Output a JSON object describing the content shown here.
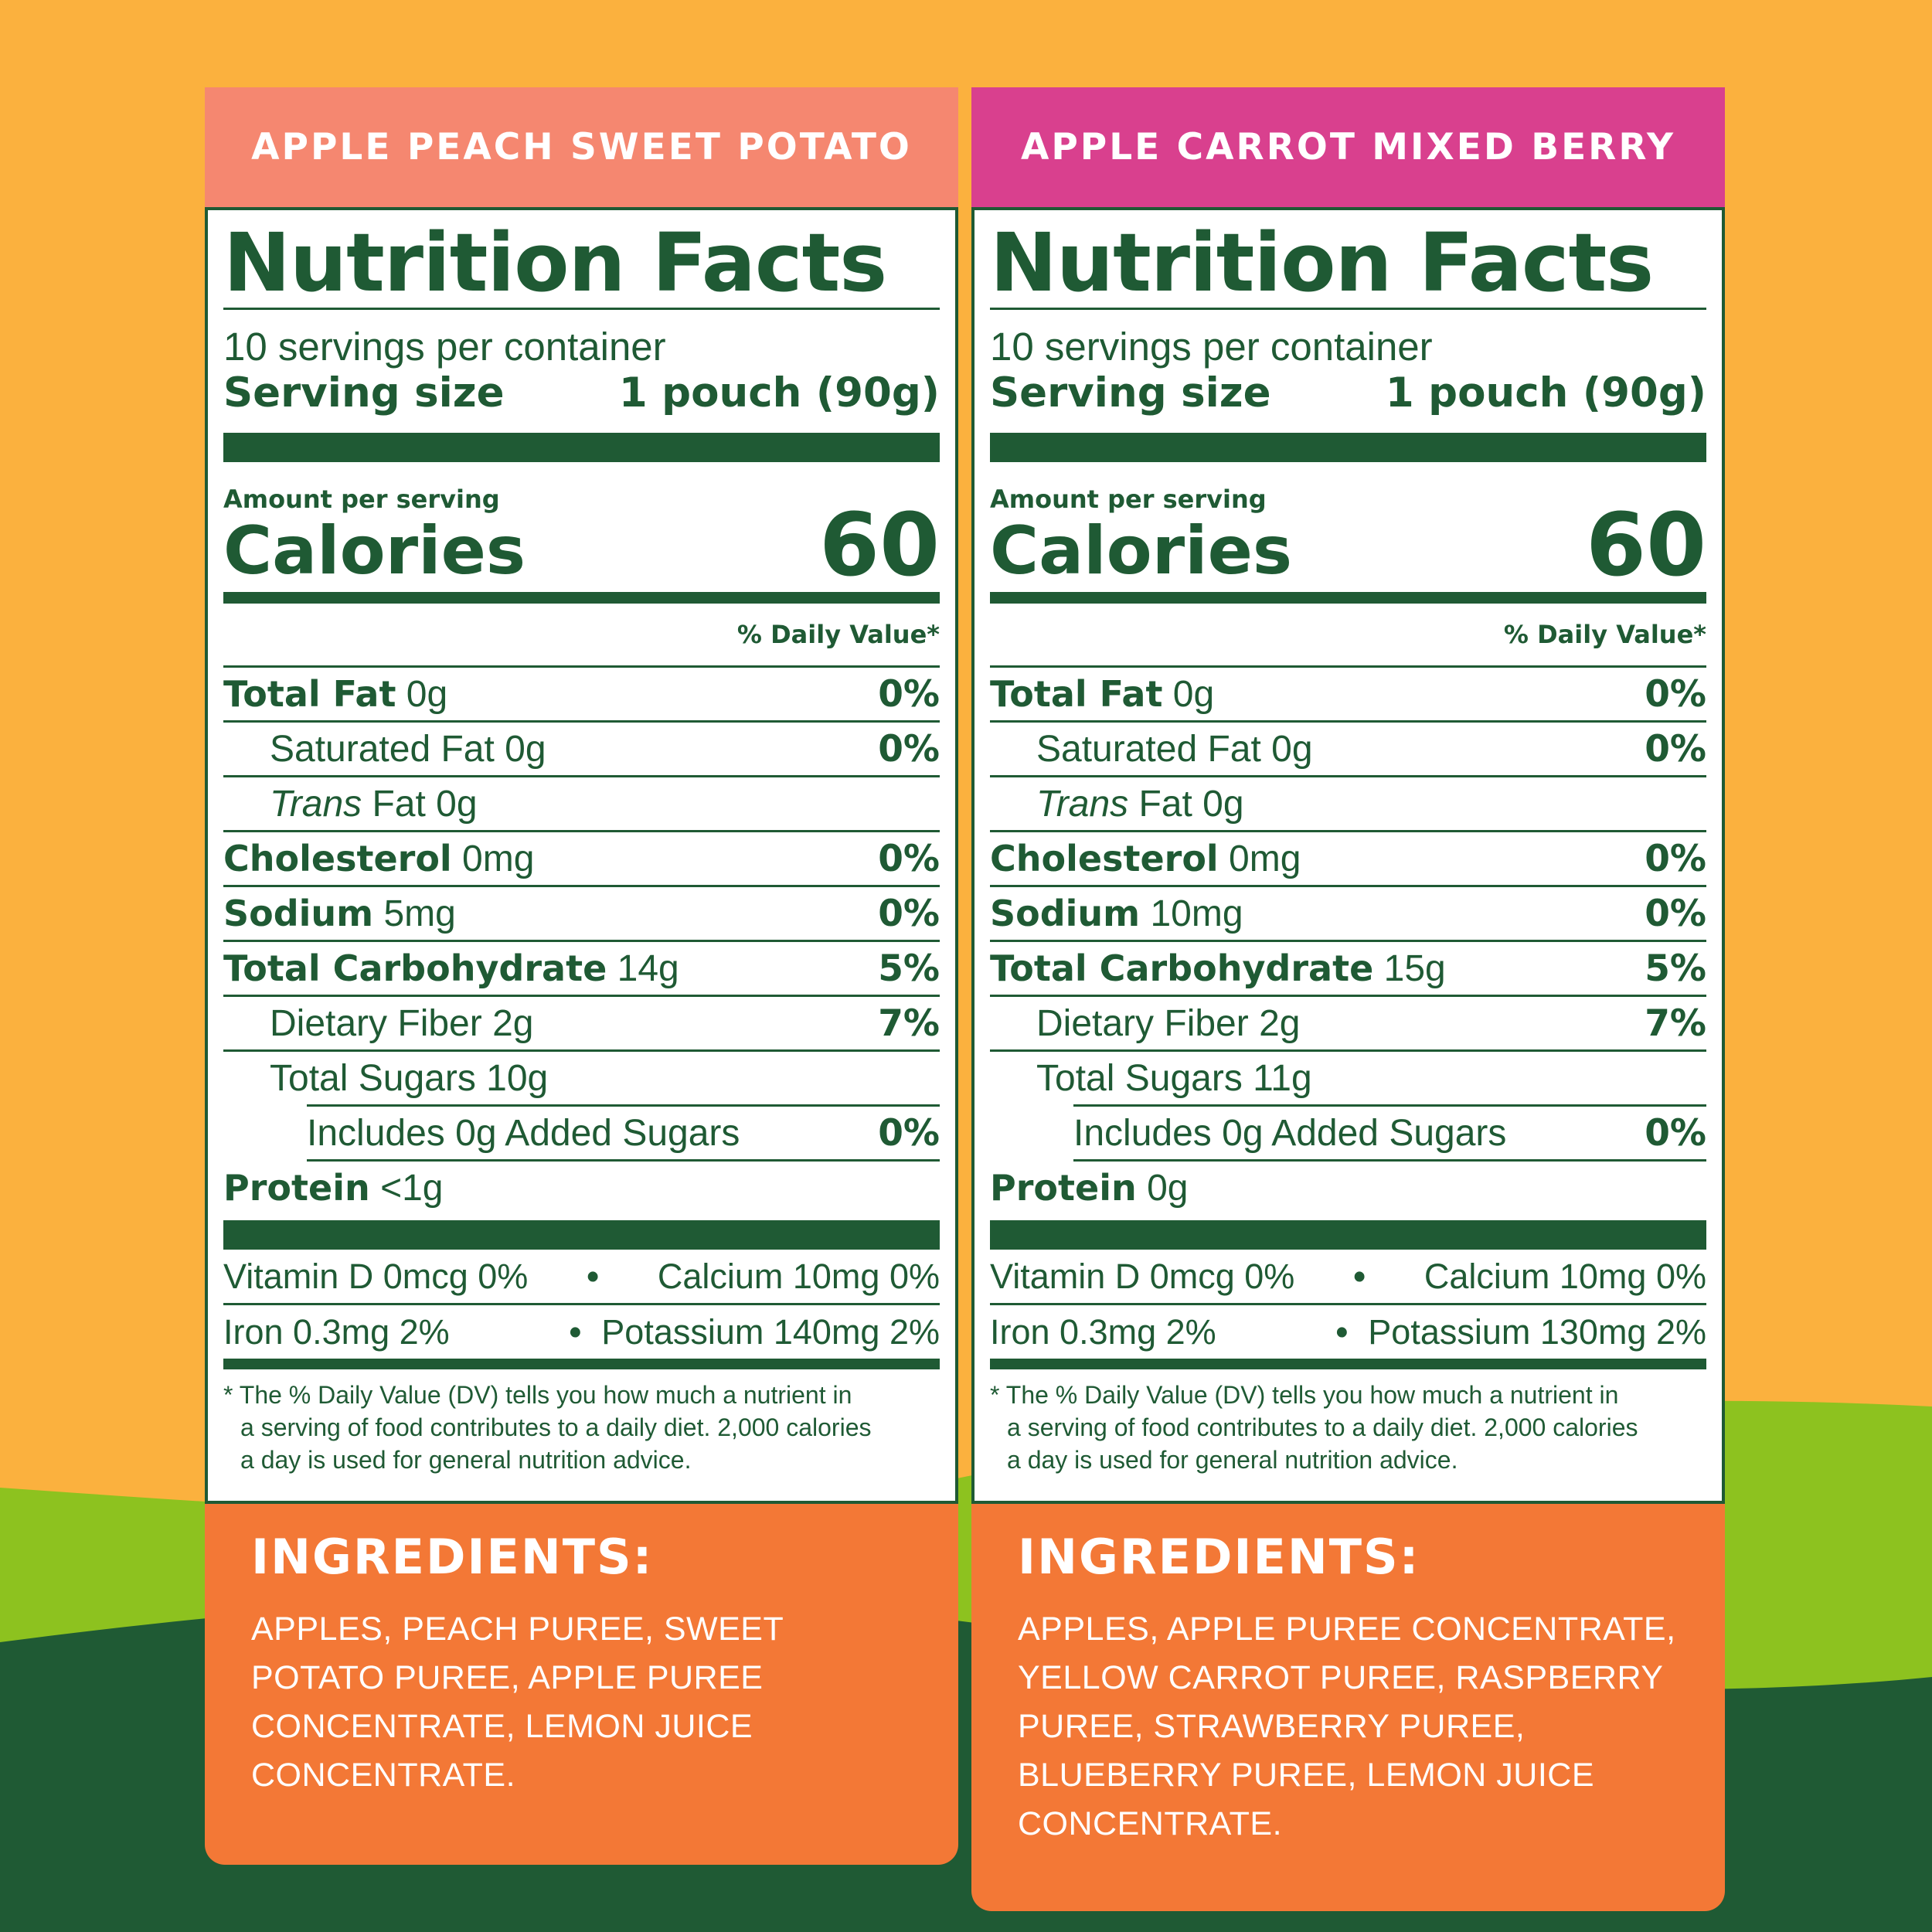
{
  "colors": {
    "background_orange": "#fbb13e",
    "hill_light_green": "#8dc21f",
    "hill_dark_green": "#1f5a34",
    "label_green": "#1f5a34",
    "ingredients_orange": "#f37836"
  },
  "panels": [
    {
      "header": "APPLE PEACH SWEET POTATO",
      "header_color": "#f58770",
      "title": "Nutrition Facts",
      "servings": "10 servings per container",
      "serving_size_label": "Serving size",
      "serving_size_value": "1 pouch (90g)",
      "amount_per_serving": "Amount per serving",
      "calories_label": "Calories",
      "calories_value": "60",
      "daily_value_header": "% Daily Value*",
      "total_fat": {
        "label": "Total Fat",
        "amount": "0g",
        "dv": "0%"
      },
      "saturated_fat": {
        "label": "Saturated Fat 0g",
        "dv": "0%"
      },
      "trans_fat": {
        "label_italic": "Trans",
        "label_rest": "Fat 0g"
      },
      "cholesterol": {
        "label": "Cholesterol",
        "amount": "0mg",
        "dv": "0%"
      },
      "sodium": {
        "label": "Sodium",
        "amount": "5mg",
        "dv": "0%"
      },
      "total_carbohydrate": {
        "label": "Total Carbohydrate",
        "amount": "14g",
        "dv": "5%"
      },
      "dietary_fiber": {
        "label": "Dietary Fiber 2g",
        "dv": "7%"
      },
      "total_sugars": {
        "label": "Total Sugars 10g"
      },
      "added_sugars": {
        "label": "Includes 0g Added Sugars",
        "dv": "0%"
      },
      "protein": {
        "label": "Protein",
        "amount": "<1g"
      },
      "vitamin_d": "Vitamin D 0mcg 0%",
      "calcium": "Calcium 10mg 0%",
      "iron": "Iron 0.3mg 2%",
      "potassium": "Potassium 140mg 2%",
      "bullet": "•",
      "footnote_line1": "* The % Daily Value (DV) tells you how much a nutrient in",
      "footnote_line2": "a serving of food contributes to a daily diet. 2,000 calories",
      "footnote_line3": "a day is used for general nutrition advice.",
      "ingredients_title": "INGREDIENTS:",
      "ingredients_lines": [
        "APPLES, PEACH PUREE, SWEET",
        "POTATO PUREE, APPLE PUREE",
        "CONCENTRATE, LEMON JUICE",
        "CONCENTRATE."
      ]
    },
    {
      "header": "APPLE CARROT MIXED BERRY",
      "header_color": "#d9408e",
      "title": "Nutrition Facts",
      "servings": "10 servings per container",
      "serving_size_label": "Serving size",
      "serving_size_value": "1 pouch (90g)",
      "amount_per_serving": "Amount per serving",
      "calories_label": "Calories",
      "calories_value": "60",
      "daily_value_header": "% Daily Value*",
      "total_fat": {
        "label": "Total Fat",
        "amount": "0g",
        "dv": "0%"
      },
      "saturated_fat": {
        "label": "Saturated Fat 0g",
        "dv": "0%"
      },
      "trans_fat": {
        "label_italic": "Trans",
        "label_rest": "Fat 0g"
      },
      "cholesterol": {
        "label": "Cholesterol",
        "amount": "0mg",
        "dv": "0%"
      },
      "sodium": {
        "label": "Sodium",
        "amount": "10mg",
        "dv": "0%"
      },
      "total_carbohydrate": {
        "label": "Total Carbohydrate",
        "amount": "15g",
        "dv": "5%"
      },
      "dietary_fiber": {
        "label": "Dietary Fiber 2g",
        "dv": "7%"
      },
      "total_sugars": {
        "label": "Total Sugars 11g"
      },
      "added_sugars": {
        "label": "Includes 0g Added Sugars",
        "dv": "0%"
      },
      "protein": {
        "label": "Protein",
        "amount": "0g"
      },
      "vitamin_d": "Vitamin D 0mcg 0%",
      "calcium": "Calcium 10mg 0%",
      "iron": "Iron 0.3mg 2%",
      "potassium": "Potassium 130mg 2%",
      "bullet": "•",
      "footnote_line1": "* The % Daily Value (DV) tells you how much a nutrient in",
      "footnote_line2": "a serving of food contributes to a daily diet. 2,000 calories",
      "footnote_line3": "a day is used for general nutrition advice.",
      "ingredients_title": "INGREDIENTS:",
      "ingredients_lines": [
        "APPLES, APPLE PUREE CONCENTRATE,",
        "YELLOW CARROT PUREE, RASPBERRY",
        "PUREE, STRAWBERRY PUREE,",
        "BLUEBERRY PUREE, LEMON JUICE",
        "CONCENTRATE."
      ]
    }
  ]
}
